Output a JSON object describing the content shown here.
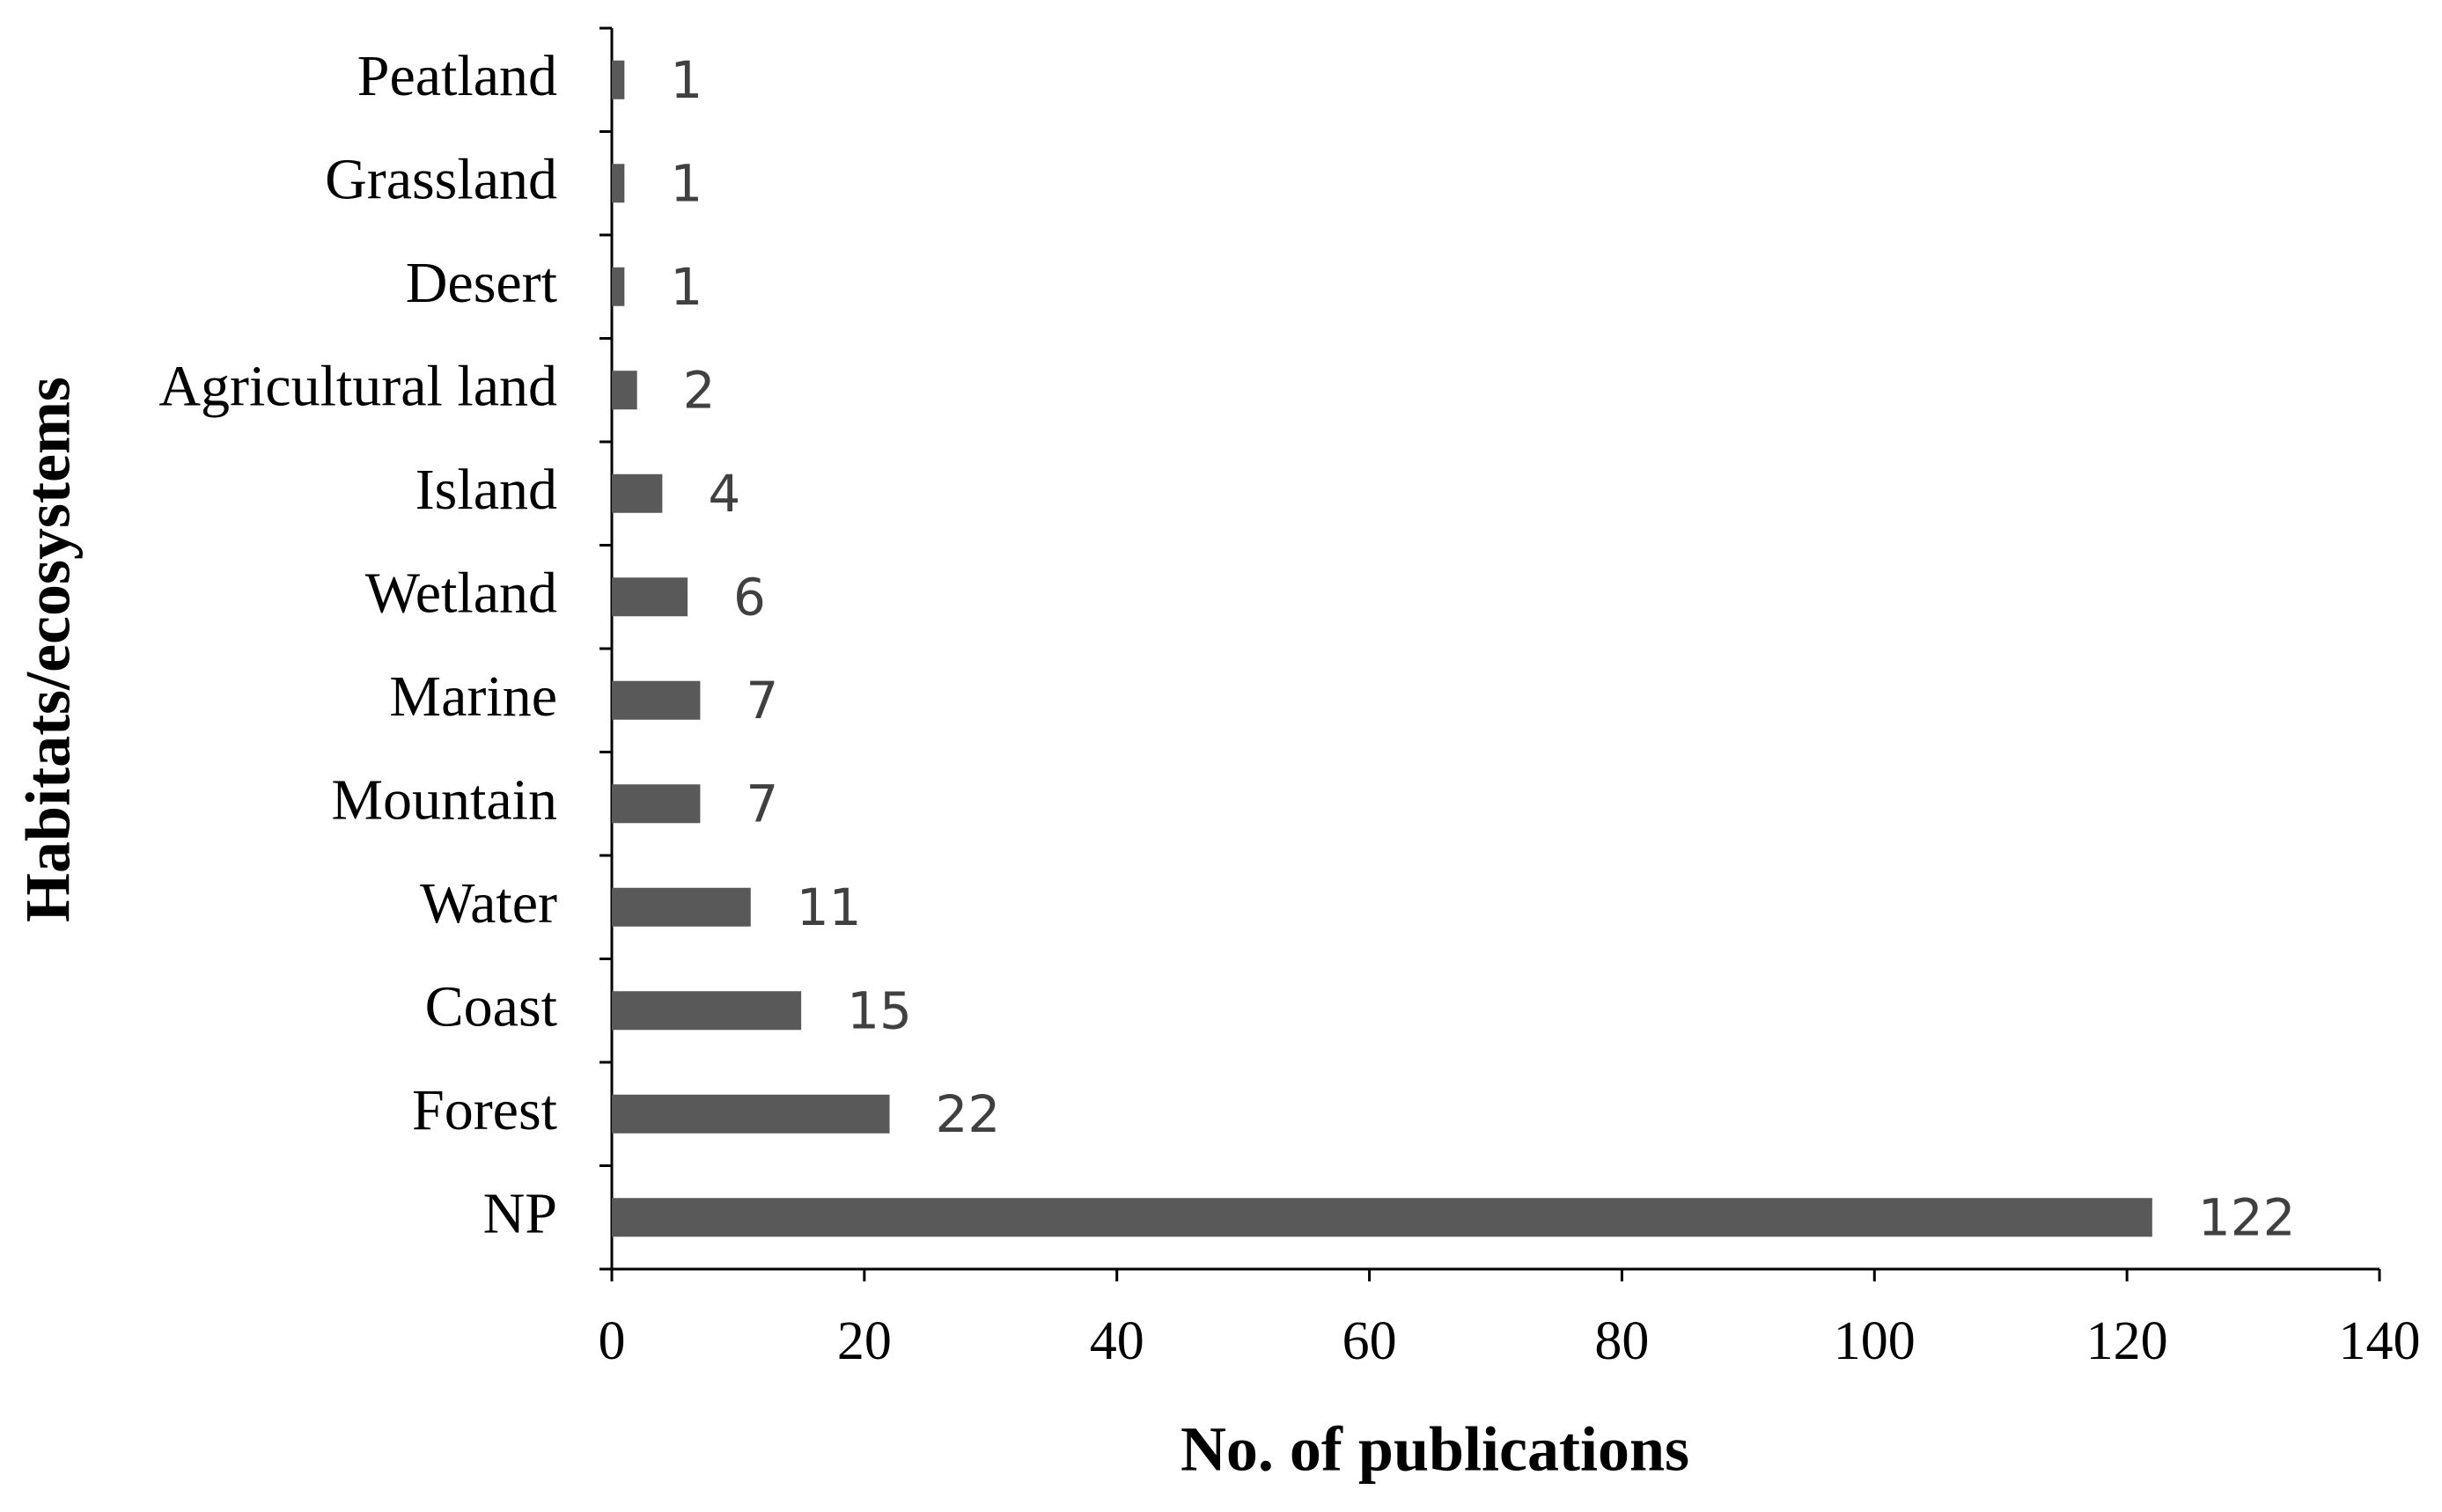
{
  "chart_data": {
    "type": "hbar",
    "x_label": "No. of publications",
    "y_label": "Habitats/ecosystems",
    "categories": [
      "Peatland",
      "Grassland",
      "Desert",
      "Agricultural land",
      "Island",
      "Wetland",
      "Marine",
      "Mountain",
      "Water",
      "Coast",
      "Forest",
      "NP"
    ],
    "values": [
      1,
      1,
      1,
      2,
      4,
      6,
      7,
      7,
      11,
      15,
      22,
      122
    ],
    "color": "#595959",
    "xlim": [
      0,
      140
    ],
    "xticks": [
      0,
      20,
      40,
      60,
      80,
      100,
      120,
      140
    ],
    "grid": false
  }
}
